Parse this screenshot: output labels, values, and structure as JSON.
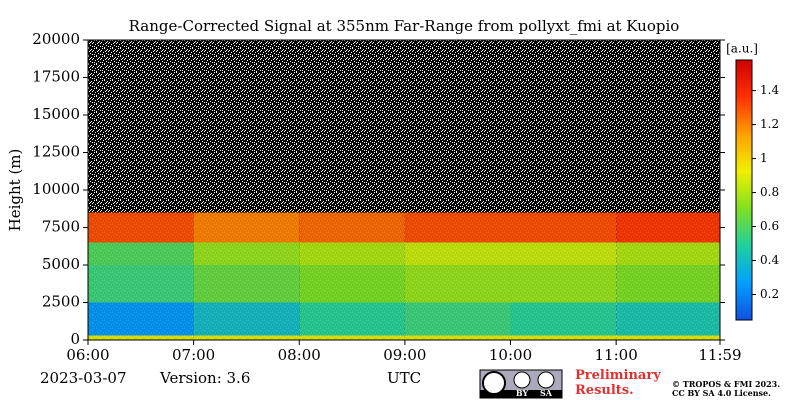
{
  "chart_data": {
    "type": "heatmap",
    "title": "Range-Corrected Signal at 355nm Far-Range from pollyxt_fmi at Kuopio",
    "y_label": "Height (m)",
    "x_label": "UTC",
    "date": "2023-03-07",
    "version": "Version: 3.6",
    "notice": "Preliminary Results.",
    "license": [
      "© TROPOS & FMI 2023.",
      "CC BY SA 4.0 License."
    ],
    "badge": [
      "BY",
      "SA"
    ],
    "colorbar_label": "[a.u.]",
    "x_bins": [
      6,
      7,
      8,
      9,
      10,
      11,
      11.9833
    ],
    "y_bins": [
      0,
      300,
      2500,
      5000,
      6500,
      8500,
      20000
    ],
    "z": [
      [
        0.9,
        0.9,
        0.9,
        0.9,
        0.9,
        0.9
      ],
      [
        0.25,
        0.4,
        0.5,
        0.55,
        0.5,
        0.45
      ],
      [
        0.55,
        0.65,
        0.7,
        0.75,
        0.75,
        0.7
      ],
      [
        0.6,
        0.75,
        0.8,
        0.85,
        0.85,
        0.8
      ],
      [
        1.3,
        1.2,
        1.25,
        1.3,
        1.3,
        1.35
      ],
      [
        null,
        null,
        null,
        null,
        null,
        null
      ]
    ],
    "colormap": [
      "#1050e0",
      "#00a0ff",
      "#20d0a0",
      "#80e020",
      "#f0f000",
      "#ffa000",
      "#ff3000",
      "#d00000"
    ],
    "clim": [
      0.05,
      1.58
    ],
    "cticks": [
      0.2,
      0.4,
      0.6,
      0.8,
      1.0,
      1.2,
      1.4
    ],
    "xlim": [
      6,
      11.9833
    ],
    "xticks": [
      {
        "value": 6,
        "label": "06:00"
      },
      {
        "value": 7,
        "label": "07:00"
      },
      {
        "value": 8,
        "label": "08:00"
      },
      {
        "value": 9,
        "label": "09:00"
      },
      {
        "value": 10,
        "label": "10:00"
      },
      {
        "value": 11,
        "label": "11:00"
      },
      {
        "value": 11.9833,
        "label": "11:59"
      }
    ],
    "ylim": [
      0,
      20000
    ],
    "yticks": [
      0,
      2500,
      5000,
      7500,
      10000,
      12500,
      15000,
      17500,
      20000
    ]
  }
}
